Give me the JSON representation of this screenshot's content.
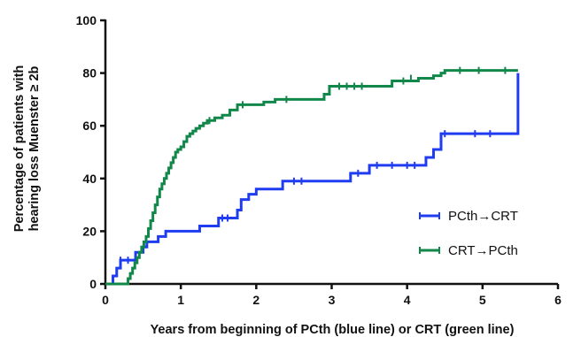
{
  "chart_data": {
    "type": "line",
    "step": true,
    "xlabel": "Years from beginning of PCth (blue line) or CRT (green line)",
    "ylabel_line1": "Percentage of patients with",
    "ylabel_line2": "hearing loss Muenster ≥ 2b",
    "xlim": [
      0,
      6
    ],
    "ylim": [
      0,
      100
    ],
    "xticks": [
      0,
      1,
      2,
      3,
      4,
      5,
      6
    ],
    "yticks": [
      0,
      20,
      40,
      60,
      80,
      100
    ],
    "xtick_labels": [
      "0",
      "1",
      "2",
      "3",
      "4",
      "5",
      "6"
    ],
    "ytick_labels": [
      "0",
      "20",
      "40",
      "60",
      "80",
      "100"
    ],
    "grid": false,
    "legend_position": "bottom-right",
    "series": [
      {
        "name": "PCth→CRT",
        "color": "#1f3cf0",
        "x": [
          0,
          0.1,
          0.15,
          0.2,
          0.4,
          0.5,
          0.55,
          0.7,
          0.8,
          1.25,
          1.5,
          1.75,
          1.8,
          1.9,
          2.0,
          2.35,
          3.25,
          3.5,
          4.25,
          4.35,
          4.45,
          5.47,
          5.47
        ],
        "y": [
          0,
          3,
          6,
          9,
          12,
          14,
          16,
          18,
          20,
          22,
          25,
          28,
          32,
          34,
          36,
          39,
          42,
          45,
          48,
          51,
          57,
          57,
          80
        ],
        "censor_x": [
          0.2,
          0.3,
          1.55,
          1.62,
          2.5,
          2.6,
          3.35,
          3.6,
          3.8,
          4.0,
          4.1,
          4.5,
          4.9,
          5.1
        ],
        "censor_y": [
          9,
          9,
          25,
          25,
          39,
          39,
          42,
          45,
          45,
          45,
          45,
          57,
          57,
          57
        ]
      },
      {
        "name": "CRT→PCth",
        "color": "#11874a",
        "x": [
          0,
          0.3,
          0.33,
          0.36,
          0.39,
          0.42,
          0.45,
          0.48,
          0.51,
          0.54,
          0.57,
          0.6,
          0.63,
          0.66,
          0.69,
          0.72,
          0.75,
          0.78,
          0.81,
          0.84,
          0.87,
          0.9,
          0.93,
          0.96,
          1.0,
          1.04,
          1.08,
          1.12,
          1.16,
          1.2,
          1.25,
          1.3,
          1.35,
          1.45,
          1.55,
          1.65,
          1.75,
          2.1,
          2.25,
          2.9,
          2.97,
          3.8,
          4.15,
          4.35,
          4.45,
          4.5,
          5.47
        ],
        "y": [
          0,
          2,
          4,
          6,
          8,
          10,
          12,
          14,
          16,
          18,
          21,
          24,
          27,
          30,
          33,
          36,
          38,
          40,
          42,
          44,
          46,
          48,
          50,
          51,
          52,
          54,
          56,
          57,
          58,
          59,
          60,
          61,
          62,
          63,
          64,
          66,
          68,
          69,
          70,
          72,
          75,
          77,
          78,
          79,
          80,
          81,
          81
        ],
        "censor_x": [
          1.38,
          1.82,
          2.4,
          3.1,
          3.2,
          3.3,
          3.4,
          3.95,
          4.05,
          4.7,
          4.95,
          5.3
        ],
        "censor_y": [
          62,
          68,
          70,
          75,
          75,
          75,
          75,
          77,
          78,
          81,
          81,
          81
        ]
      }
    ]
  }
}
